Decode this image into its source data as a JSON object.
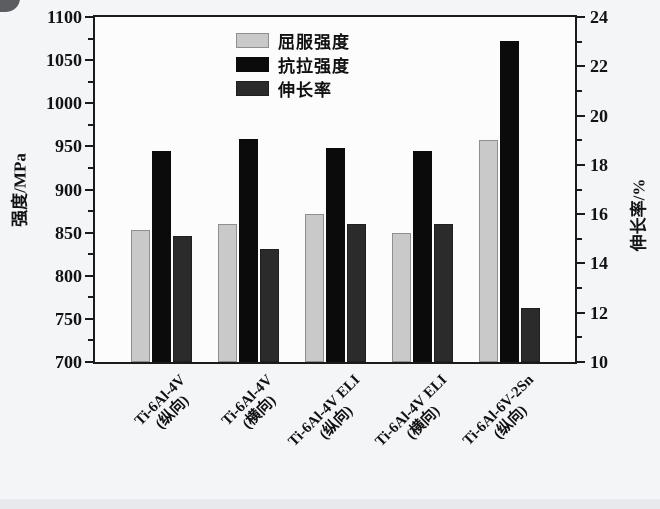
{
  "chart_data": {
    "type": "bar",
    "title": "",
    "left_axis": {
      "label": "强度/MPa",
      "min": 700,
      "max": 1100,
      "major_step": 50,
      "minor_step": 25
    },
    "right_axis": {
      "label": "伸长率/%",
      "min": 10,
      "max": 24,
      "major_step": 2,
      "minor_step": 1
    },
    "categories": [
      {
        "name": "Ti-6Al-4V",
        "orientation": "(纵向)"
      },
      {
        "name": "Ti-6Al-4V",
        "orientation": "(横向)"
      },
      {
        "name": "Ti-6Al-4V ELI",
        "orientation": "(纵向)"
      },
      {
        "name": "Ti-6Al-4V ELI",
        "orientation": "(横向)"
      },
      {
        "name": "Ti-6Al-6V-2Sn",
        "orientation": "(纵向)"
      }
    ],
    "series": [
      {
        "key": "yield-strength",
        "name": "屈服强度",
        "axis": "left",
        "unit": "MPa",
        "color": "#c9c9c9",
        "border": "#8f8f8f",
        "values": [
          853,
          860,
          872,
          849,
          957
        ]
      },
      {
        "key": "tensile-strength",
        "name": "抗拉强度",
        "axis": "left",
        "unit": "MPa",
        "color": "#0b0b0b",
        "border": "#0b0b0b",
        "values": [
          945,
          958,
          948,
          945,
          1072
        ]
      },
      {
        "key": "elongation",
        "name": "伸长率",
        "axis": "right",
        "unit": "%",
        "color": "#2b2b2b",
        "border": "#1f1f1f",
        "values": [
          15.1,
          14.6,
          15.6,
          15.6,
          12.2
        ]
      }
    ],
    "legend_position": "upper-left-inside",
    "grid": false
  }
}
